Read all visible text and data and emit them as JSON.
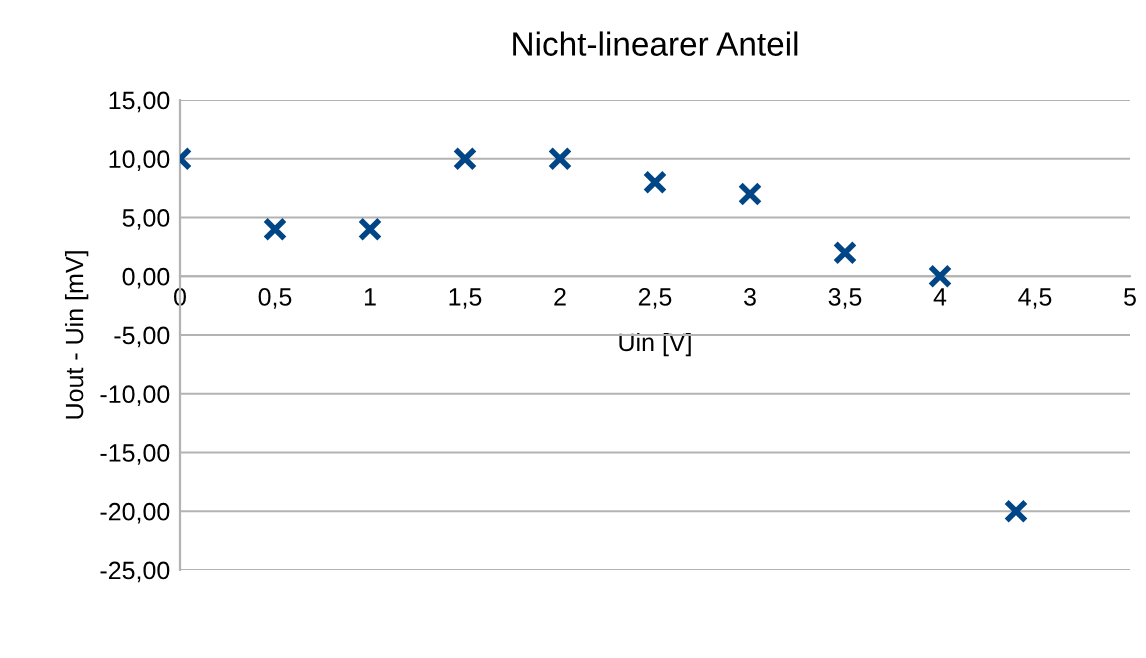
{
  "chart_data": {
    "type": "scatter",
    "title": "Nicht-linearer Anteil",
    "xlabel": "Uin [V]",
    "ylabel": "Uout - Uin [mV]",
    "x": [
      0,
      0.5,
      1,
      1.5,
      2,
      2.5,
      3,
      3.5,
      4,
      4.4
    ],
    "series": [
      {
        "color": "#004586",
        "values": [
          10,
          4,
          4,
          10,
          10,
          8,
          7,
          2,
          0,
          -20
        ]
      }
    ],
    "marker": "cross",
    "grid": "y",
    "legend": false,
    "xlim": [
      0,
      5
    ],
    "xticks": [
      0,
      {
        "value": 0.5,
        "label": "0,5"
      },
      1,
      {
        "value": 1.5,
        "label": "1,5"
      },
      2,
      {
        "value": 2.5,
        "label": "2,5"
      },
      3,
      {
        "value": 3.5,
        "label": "3,5"
      },
      4,
      {
        "value": 4.5,
        "label": "4,5"
      },
      5
    ],
    "ylim": [
      -25,
      15
    ],
    "yticks": [
      {
        "value": -25,
        "label": "-25,00"
      },
      {
        "value": -20,
        "label": "-20,00"
      },
      {
        "value": -15,
        "label": "-15,00"
      },
      {
        "value": -10,
        "label": "-10,00"
      },
      {
        "value": -5,
        "label": "-5,00"
      },
      {
        "value": 0,
        "label": "0,00"
      },
      {
        "value": 5,
        "label": "5,00"
      },
      {
        "value": 10,
        "label": "10,00"
      },
      {
        "value": 15,
        "label": "15,00"
      }
    ]
  }
}
